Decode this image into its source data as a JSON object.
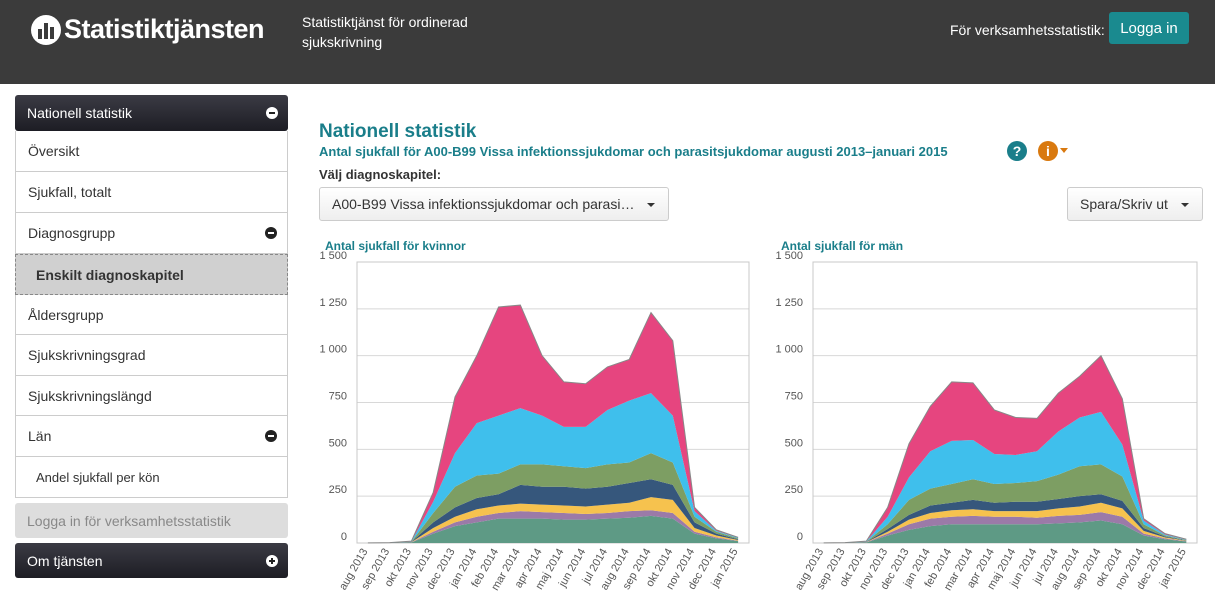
{
  "header": {
    "logo": "Statistiktjänsten",
    "subtitle": "Statistiktjänst för ordinerad sjukskrivning",
    "login_prompt": "För verksamhetsstatistik:",
    "login_button": "Logga in"
  },
  "sidebar": {
    "section": "Nationell statistik",
    "items": [
      "Översikt",
      "Sjukfall, totalt",
      "Diagnosgrupp",
      "Enskilt diagnoskapitel",
      "Åldersgrupp",
      "Sjukskrivningsgrad",
      "Sjukskrivningslängd",
      "Län",
      "Andel sjukfall per kön"
    ],
    "login_item": "Logga in för verksamhetsstatistik",
    "about": "Om tjänsten"
  },
  "page": {
    "title": "Nationell statistik",
    "subtitle": "Antal sjukfall för A00-B99 Vissa infektionssjukdomar och parasitsjukdomar augusti 2013–januari 2015",
    "help_icon": "?",
    "info_icon": "i",
    "select_label": "Välj diagnoskapitel:",
    "select_value": "A00-B99 Vissa infektionssjukdomar och parasi…",
    "save_button": "Spara/Skriv ut"
  },
  "chart_data": [
    {
      "type": "area",
      "stacked": true,
      "title": "Antal sjukfall för kvinnor",
      "categories": [
        "aug 2013",
        "sep 2013",
        "okt 2013",
        "nov 2013",
        "dec 2013",
        "jan 2014",
        "feb 2014",
        "mar 2014",
        "apr 2014",
        "maj 2014",
        "jun 2014",
        "jul 2014",
        "aug 2014",
        "sep 2014",
        "okt 2014",
        "nov 2014",
        "dec 2014",
        "jan 2015"
      ],
      "ylim": [
        0,
        1500
      ],
      "yticks": [
        0,
        250,
        500,
        750,
        {
          "value": 1000,
          "label": "1 000"
        },
        {
          "value": 1250,
          "label": "1 250"
        },
        {
          "value": 1500,
          "label": "1 500"
        }
      ],
      "grid": true,
      "series": [
        {
          "color": "#5e9a85",
          "values": [
            0,
            1,
            3,
            50,
            90,
            110,
            130,
            130,
            130,
            125,
            125,
            130,
            135,
            145,
            130,
            50,
            25,
            10
          ]
        },
        {
          "color": "#9b7aa8",
          "values": [
            0,
            0,
            1,
            10,
            20,
            30,
            30,
            40,
            35,
            35,
            30,
            30,
            35,
            30,
            30,
            10,
            5,
            2
          ]
        },
        {
          "color": "#f6c24e",
          "values": [
            0,
            0,
            1,
            20,
            30,
            40,
            40,
            40,
            40,
            40,
            40,
            45,
            45,
            70,
            70,
            20,
            10,
            4
          ]
        },
        {
          "color": "#36577c",
          "values": [
            0,
            0,
            1,
            30,
            50,
            60,
            60,
            100,
            95,
            100,
            95,
            95,
            105,
            95,
            80,
            30,
            10,
            4
          ]
        },
        {
          "color": "#7d9e63",
          "values": [
            0,
            0,
            1,
            50,
            110,
            120,
            110,
            110,
            120,
            110,
            110,
            120,
            110,
            140,
            120,
            30,
            10,
            5
          ]
        },
        {
          "color": "#3fbfec",
          "values": [
            1,
            1,
            1,
            60,
            180,
            280,
            310,
            300,
            260,
            210,
            220,
            290,
            330,
            320,
            250,
            30,
            5,
            3
          ]
        },
        {
          "color": "#e6457f",
          "values": [
            0,
            0,
            2,
            50,
            300,
            360,
            580,
            550,
            320,
            240,
            230,
            230,
            220,
            430,
            400,
            20,
            5,
            2
          ]
        }
      ]
    },
    {
      "type": "area",
      "stacked": true,
      "title": "Antal sjukfall för män",
      "categories": [
        "aug 2013",
        "sep 2013",
        "okt 2013",
        "nov 2013",
        "dec 2013",
        "jan 2014",
        "feb 2014",
        "mar 2014",
        "apr 2014",
        "maj 2014",
        "jun 2014",
        "jul 2014",
        "aug 2014",
        "sep 2014",
        "okt 2014",
        "nov 2014",
        "dec 2014",
        "jan 2015"
      ],
      "ylim": [
        0,
        1500
      ],
      "yticks": [
        0,
        250,
        500,
        750,
        {
          "value": 1000,
          "label": "1 000"
        },
        {
          "value": 1250,
          "label": "1 250"
        },
        {
          "value": 1500,
          "label": "1 500"
        }
      ],
      "grid": true,
      "series": [
        {
          "color": "#5e9a85",
          "values": [
            0,
            1,
            3,
            40,
            70,
            90,
            100,
            100,
            100,
            100,
            100,
            105,
            110,
            120,
            100,
            40,
            20,
            8
          ]
        },
        {
          "color": "#9b7aa8",
          "values": [
            0,
            0,
            1,
            10,
            30,
            40,
            40,
            45,
            40,
            40,
            35,
            40,
            40,
            45,
            40,
            10,
            5,
            2
          ]
        },
        {
          "color": "#f6c24e",
          "values": [
            0,
            0,
            1,
            10,
            25,
            30,
            35,
            35,
            30,
            30,
            35,
            40,
            45,
            50,
            45,
            15,
            5,
            2
          ]
        },
        {
          "color": "#36577c",
          "values": [
            0,
            0,
            1,
            15,
            25,
            40,
            40,
            50,
            45,
            50,
            50,
            50,
            55,
            45,
            40,
            15,
            5,
            2
          ]
        },
        {
          "color": "#7d9e63",
          "values": [
            0,
            0,
            1,
            25,
            80,
            90,
            100,
            110,
            100,
            100,
            110,
            130,
            160,
            160,
            130,
            20,
            5,
            2
          ]
        },
        {
          "color": "#3fbfec",
          "values": [
            1,
            1,
            1,
            40,
            120,
            200,
            230,
            210,
            160,
            150,
            160,
            230,
            260,
            280,
            170,
            20,
            5,
            2
          ]
        },
        {
          "color": "#e6457f",
          "values": [
            0,
            0,
            2,
            50,
            180,
            240,
            315,
            305,
            235,
            200,
            175,
            205,
            220,
            300,
            245,
            10,
            5,
            2
          ]
        }
      ]
    }
  ]
}
